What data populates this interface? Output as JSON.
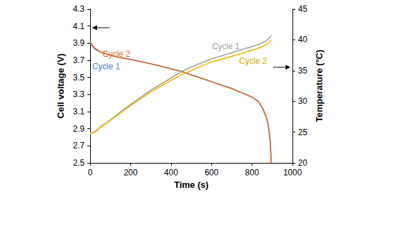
{
  "chart_data": {
    "type": "line",
    "x_label": "Time (s)",
    "y_label": "Cell voltage (V)",
    "y2_label": "Temperature (°C)",
    "x": [
      0,
      10,
      25,
      50,
      100,
      150,
      200,
      300,
      400,
      450,
      500,
      600,
      700,
      750,
      800,
      830,
      850,
      870,
      880,
      890,
      895
    ],
    "series": [
      {
        "name": "Cycle 1",
        "color": "#4a78c8",
        "axis": "y",
        "line_style": "solid",
        "marker": "none",
        "values": [
          3.91,
          3.87,
          3.83,
          3.8,
          3.76,
          3.73,
          3.71,
          3.66,
          3.6,
          3.57,
          3.53,
          3.45,
          3.37,
          3.32,
          3.27,
          3.22,
          3.15,
          3.04,
          2.95,
          2.75,
          2.5
        ]
      },
      {
        "name": "Cycle 2",
        "color": "#e06e2d",
        "axis": "y",
        "line_style": "solid",
        "marker": "none",
        "values": [
          3.92,
          3.88,
          3.84,
          3.8,
          3.76,
          3.73,
          3.71,
          3.66,
          3.6,
          3.57,
          3.53,
          3.45,
          3.37,
          3.32,
          3.27,
          3.22,
          3.15,
          3.04,
          2.95,
          2.75,
          2.5
        ]
      },
      {
        "name": "Cycle 1",
        "color": "#a0a0a0",
        "axis": "y2",
        "line_style": "solid",
        "marker": "none",
        "values": [
          24.8,
          24.8,
          25.1,
          25.8,
          27.0,
          28.3,
          29.5,
          31.8,
          33.8,
          34.8,
          35.6,
          36.9,
          37.9,
          38.4,
          38.9,
          39.2,
          39.5,
          39.8,
          40.1,
          40.5,
          40.7
        ]
      },
      {
        "name": "Cycle 2",
        "color": "#f2b705",
        "axis": "y2",
        "line_style": "solid",
        "marker": "none",
        "values": [
          24.8,
          24.8,
          25.0,
          25.7,
          26.9,
          28.1,
          29.3,
          31.5,
          33.4,
          34.3,
          35.0,
          36.4,
          37.3,
          37.8,
          38.3,
          38.6,
          38.9,
          39.2,
          39.4,
          39.8,
          40.0
        ]
      }
    ],
    "xlim": [
      0,
      1000
    ],
    "xticks": [
      0,
      200,
      400,
      600,
      800,
      1000
    ],
    "ylim": [
      2.5,
      4.3
    ],
    "yticks": [
      2.5,
      2.7,
      2.9,
      3.1,
      3.3,
      3.5,
      3.7,
      3.9,
      4.1,
      4.3
    ],
    "y2lim": [
      20,
      45
    ],
    "y2ticks": [
      20,
      25,
      30,
      35,
      40,
      45
    ],
    "annotations": [
      {
        "text": "Cycle 2",
        "x": 130,
        "y": 3.77,
        "axis": "y",
        "color": "#e06e2d"
      },
      {
        "text": "Cycle 1",
        "x": 79,
        "y": 3.63,
        "axis": "y",
        "color": "#4a78c8"
      },
      {
        "text": "Cycle 1",
        "x": 671,
        "y": 38.9,
        "axis": "y2",
        "color": "#a0a0a0"
      },
      {
        "text": "Cycle 2",
        "x": 805,
        "y": 36.55,
        "axis": "y2",
        "color": "#d9a400"
      }
    ],
    "grid": false,
    "legend": "none"
  }
}
